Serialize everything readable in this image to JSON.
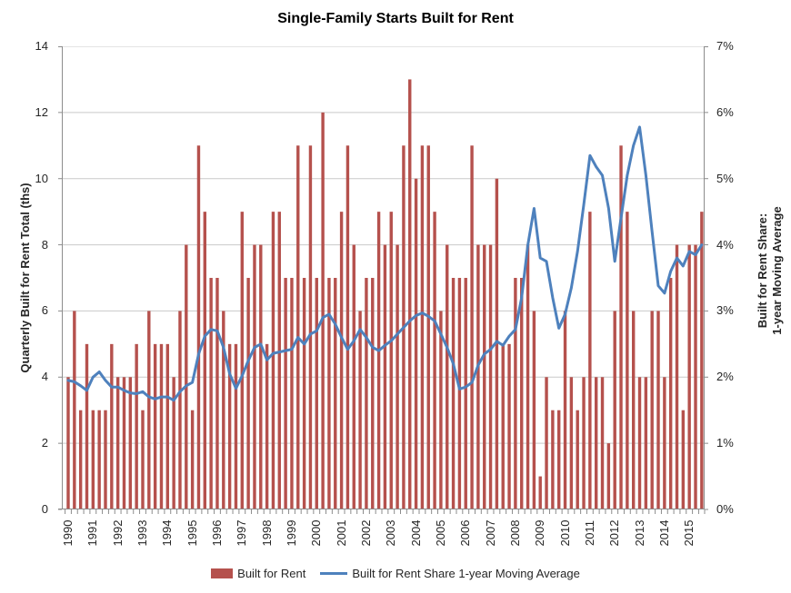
{
  "title": "Single-Family Starts Built for Rent",
  "left_axis": {
    "title": "Quarterly Built for Rent Total (ths)",
    "ticks": [
      "0",
      "2",
      "4",
      "6",
      "8",
      "10",
      "12",
      "14"
    ],
    "min": 0,
    "max": 14
  },
  "right_axis": {
    "title_line1": "Built for Rent Share:",
    "title_line2": "1-year Moving Average",
    "ticks": [
      "0%",
      "1%",
      "2%",
      "3%",
      "4%",
      "5%",
      "6%",
      "7%"
    ],
    "min": 0,
    "max": 7
  },
  "x_axis": {
    "years": [
      "1990",
      "1991",
      "1992",
      "1993",
      "1994",
      "1995",
      "1996",
      "1997",
      "1998",
      "1999",
      "2000",
      "2001",
      "2002",
      "2003",
      "2004",
      "2005",
      "2006",
      "2007",
      "2008",
      "2009",
      "2010",
      "2011",
      "2012",
      "2013",
      "2014",
      "2015"
    ]
  },
  "legend": {
    "items": [
      {
        "label": "Built for Rent",
        "type": "bar"
      },
      {
        "label": "Built for Rent Share 1-year Moving Average",
        "type": "line"
      }
    ]
  },
  "colors": {
    "bar": "#B5514D",
    "line": "#4E81BD",
    "gridline": "#C9C9C9",
    "axis": "#8C8C8C",
    "text": "#262626"
  },
  "chart_data": {
    "type": "bar",
    "subtype": "combo-bar-line",
    "title": "Single-Family Starts Built for Rent",
    "x_start": "1990Q1",
    "x_end": "2015Q3",
    "x_frequency": "quarterly",
    "ylabel_left": "Quarterly Built for Rent Total (ths)",
    "ylabel_right": "Built for Rent Share: 1-year Moving Average",
    "ylim_left": [
      0,
      14
    ],
    "ylim_right_pct": [
      0,
      7
    ],
    "grid": true,
    "legend_position": "bottom",
    "series": [
      {
        "name": "Built for Rent",
        "type": "bar",
        "axis": "left",
        "values": [
          4,
          6,
          3,
          5,
          3,
          3,
          3,
          5,
          4,
          4,
          4,
          5,
          3,
          6,
          5,
          5,
          5,
          4,
          6,
          8,
          3,
          11,
          9,
          7,
          7,
          6,
          5,
          5,
          9,
          7,
          8,
          8,
          5,
          9,
          9,
          7,
          7,
          11,
          7,
          11,
          7,
          12,
          7,
          7,
          9,
          11,
          8,
          6,
          7,
          7,
          9,
          8,
          9,
          8,
          11,
          13,
          10,
          11,
          11,
          9,
          6,
          8,
          7,
          7,
          7,
          11,
          8,
          8,
          8,
          10,
          5,
          5,
          7,
          7,
          8,
          6,
          1,
          4,
          3,
          3,
          6,
          4,
          3,
          4,
          9,
          4,
          4,
          2,
          6,
          11,
          9,
          6,
          4,
          4,
          6,
          6,
          4,
          7,
          8,
          3,
          8,
          8,
          9
        ]
      },
      {
        "name": "Built for Rent Share 1-year Moving Average",
        "type": "line",
        "axis": "right",
        "values_pct": [
          1.95,
          1.93,
          1.87,
          1.8,
          2.0,
          2.08,
          1.95,
          1.85,
          1.85,
          1.8,
          1.76,
          1.75,
          1.78,
          1.7,
          1.67,
          1.7,
          1.7,
          1.65,
          1.78,
          1.87,
          1.92,
          2.35,
          2.62,
          2.72,
          2.7,
          2.45,
          2.05,
          1.83,
          2.02,
          2.25,
          2.45,
          2.5,
          2.26,
          2.36,
          2.38,
          2.4,
          2.42,
          2.6,
          2.5,
          2.65,
          2.7,
          2.9,
          2.95,
          2.8,
          2.6,
          2.42,
          2.55,
          2.72,
          2.6,
          2.45,
          2.4,
          2.48,
          2.55,
          2.65,
          2.75,
          2.85,
          2.93,
          2.97,
          2.92,
          2.85,
          2.65,
          2.45,
          2.2,
          1.82,
          1.85,
          1.92,
          2.18,
          2.35,
          2.42,
          2.54,
          2.48,
          2.62,
          2.72,
          3.2,
          4.0,
          4.55,
          3.8,
          3.75,
          3.2,
          2.74,
          2.95,
          3.35,
          3.9,
          4.6,
          5.35,
          5.18,
          5.05,
          4.55,
          3.75,
          4.4,
          5.05,
          5.5,
          5.78,
          5.05,
          4.2,
          3.38,
          3.27,
          3.6,
          3.8,
          3.68,
          3.9,
          3.85,
          4.0
        ]
      }
    ]
  }
}
